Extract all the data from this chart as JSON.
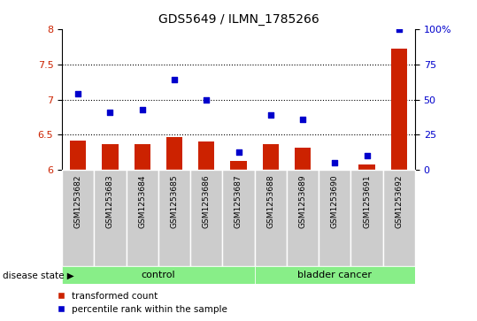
{
  "title": "GDS5649 / ILMN_1785266",
  "categories": [
    "GSM1253682",
    "GSM1253683",
    "GSM1253684",
    "GSM1253685",
    "GSM1253686",
    "GSM1253687",
    "GSM1253688",
    "GSM1253689",
    "GSM1253690",
    "GSM1253691",
    "GSM1253692"
  ],
  "transformed_count": [
    6.42,
    6.37,
    6.37,
    6.47,
    6.41,
    6.13,
    6.37,
    6.32,
    6.01,
    6.08,
    7.72
  ],
  "percentile_rank": [
    7.08,
    6.82,
    6.86,
    7.28,
    7.0,
    6.26,
    6.78,
    6.72,
    6.1,
    6.2,
    8.0
  ],
  "bar_color": "#cc2200",
  "dot_color": "#0000cc",
  "ylim_left": [
    6.0,
    8.0
  ],
  "ylim_right": [
    0,
    100
  ],
  "yticks_left": [
    6.0,
    6.5,
    7.0,
    7.5,
    8.0
  ],
  "ytick_labels_left": [
    "6",
    "6.5",
    "7",
    "7.5",
    "8"
  ],
  "yticks_right": [
    0,
    25,
    50,
    75,
    100
  ],
  "ytick_labels_right": [
    "0",
    "25",
    "50",
    "75",
    "100%"
  ],
  "grid_yticks": [
    6.5,
    7.0,
    7.5
  ],
  "n_control": 6,
  "control_label": "control",
  "cancer_label": "bladder cancer",
  "disease_state_label": "disease state",
  "legend_red_label": "transformed count",
  "legend_blue_label": "percentile rank within the sample",
  "bg_color": "#cccccc",
  "group_bar_color": "#88ee88",
  "bar_width": 0.5
}
